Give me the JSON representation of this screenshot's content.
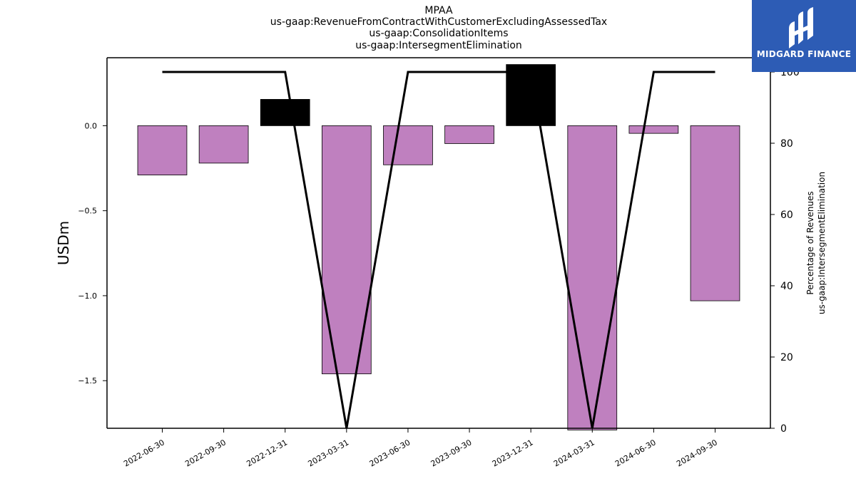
{
  "titles": [
    "MPAA",
    "us-gaap:RevenueFromContractWithCustomerExcludingAssessedTax",
    "us-gaap:ConsolidationItems",
    "us-gaap:IntersegmentElimination"
  ],
  "logo": {
    "text": "MIDGARD FINANCE"
  },
  "chart_data": {
    "type": "bar",
    "categories": [
      "2022-06-30",
      "2022-09-30",
      "2022-12-31",
      "2023-03-31",
      "2023-06-30",
      "2023-09-30",
      "2023-12-31",
      "2024-03-31",
      "2024-06-30",
      "2024-09-30"
    ],
    "series": [
      {
        "type": "bar",
        "values": [
          -0.29,
          -0.22,
          0.155,
          -1.46,
          -0.23,
          -0.105,
          0.36,
          -1.79,
          -0.045,
          -1.03
        ]
      },
      {
        "type": "line",
        "axis": "right",
        "values": [
          100,
          100,
          100,
          0,
          100,
          100,
          100,
          0,
          100,
          100
        ]
      }
    ],
    "ylabel": "USDm",
    "ylabel_right": [
      "Percentage of Revenues",
      "us-gaap:IntersegmentElimination"
    ],
    "ylim": [
      -1.78,
      0.4
    ],
    "ylim_right": [
      0,
      104
    ],
    "yticks": [
      "0.0",
      "−0.5",
      "−1.0",
      "−1.5"
    ],
    "yticks_values": [
      0,
      -0.5,
      -1.0,
      -1.5
    ],
    "yticks_right": [
      "100",
      "80",
      "60",
      "40",
      "20",
      "0"
    ],
    "yticks_right_values": [
      100,
      80,
      60,
      40,
      20,
      0
    ],
    "colors": {
      "negative": "#bf80bf",
      "positive": "#000000",
      "line": "#000000",
      "logo_bg": "#2d5cb5"
    },
    "grid": false,
    "legend": "none"
  }
}
